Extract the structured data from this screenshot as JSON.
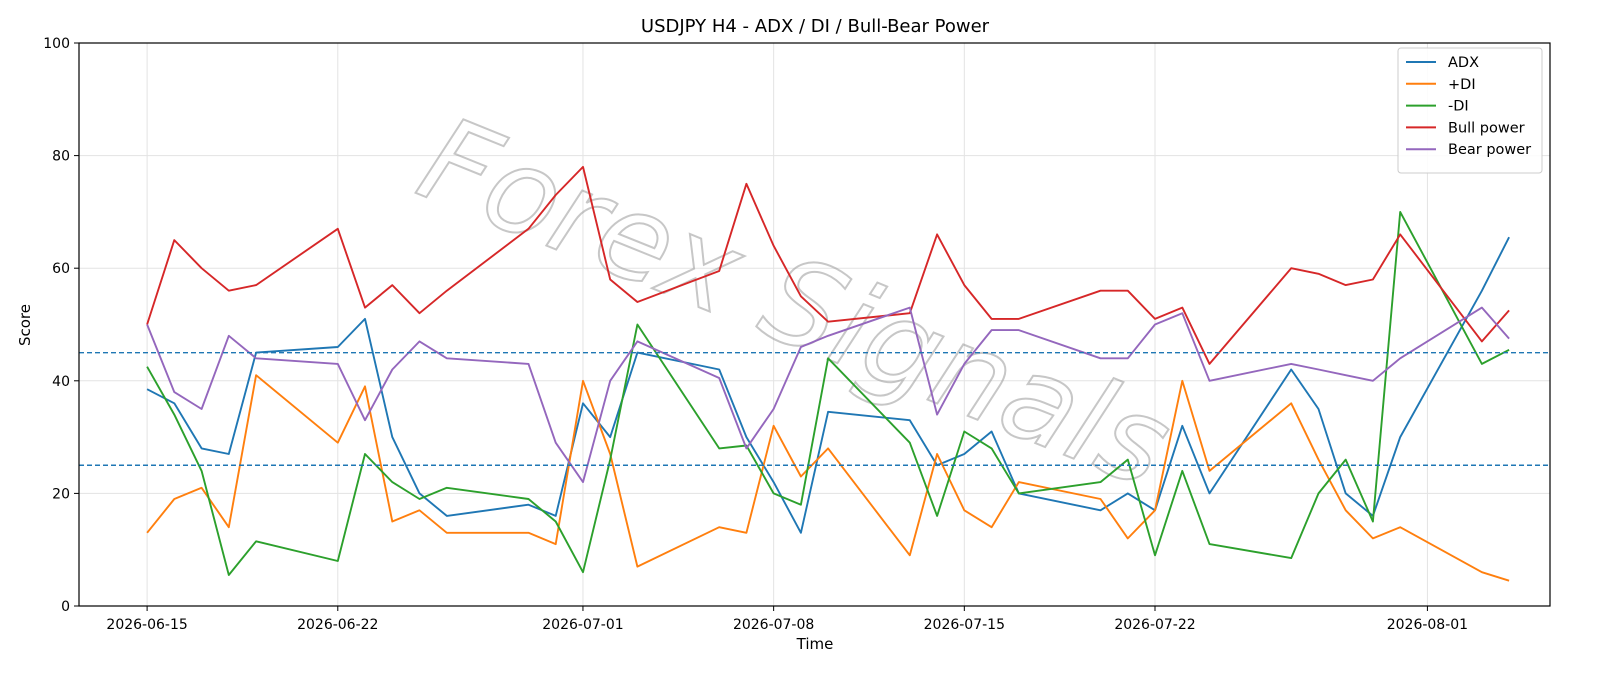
{
  "chart_data": {
    "type": "line",
    "title": "USDJPY H4 - ADX / DI / Bull-Bear Power",
    "xlabel": "Time",
    "ylabel": "Score",
    "ylim": [
      0,
      100
    ],
    "xlim": [
      "2026-06-12T12:00",
      "2026-08-05T12:00"
    ],
    "x_ticks": [
      "2026-06-15",
      "2026-06-22",
      "2026-07-01",
      "2026-07-08",
      "2026-07-15",
      "2026-07-22",
      "2026-08-01"
    ],
    "y_ticks": [
      0,
      20,
      40,
      60,
      80,
      100
    ],
    "grid": true,
    "legend": "upper right",
    "hlines": [
      {
        "y": 45,
        "style": "dashed",
        "color": "#1f77b4"
      },
      {
        "y": 25,
        "style": "dashed",
        "color": "#1f77b4"
      }
    ],
    "watermark": "Forex Signals",
    "x": [
      "2026-06-15",
      "2026-06-16",
      "2026-06-17",
      "2026-06-18",
      "2026-06-19",
      "2026-06-22",
      "2026-06-23",
      "2026-06-24",
      "2026-06-25",
      "2026-06-26",
      "2026-06-29",
      "2026-06-30",
      "2026-07-01",
      "2026-07-02",
      "2026-07-03",
      "2026-07-06",
      "2026-07-07",
      "2026-07-08",
      "2026-07-09",
      "2026-07-10",
      "2026-07-13",
      "2026-07-14",
      "2026-07-15",
      "2026-07-16",
      "2026-07-17",
      "2026-07-20",
      "2026-07-21",
      "2026-07-22",
      "2026-07-23",
      "2026-07-24",
      "2026-07-27",
      "2026-07-28",
      "2026-07-29",
      "2026-07-30",
      "2026-07-31",
      "2026-08-03",
      "2026-08-04"
    ],
    "series": [
      {
        "name": "ADX",
        "color": "#1f77b4",
        "values": [
          38.5,
          36,
          28,
          27,
          45,
          46,
          51,
          30,
          20,
          16,
          18,
          16,
          36,
          30,
          45,
          42,
          30,
          22,
          13,
          34.5,
          33,
          25,
          27,
          31,
          20,
          17,
          20,
          17,
          32,
          20,
          42,
          35,
          20,
          16,
          30,
          56,
          65.5
        ]
      },
      {
        "name": "+DI",
        "color": "#ff7f0e",
        "values": [
          13,
          19,
          21,
          14,
          41,
          29,
          39,
          15,
          17,
          13,
          13,
          11,
          40,
          27,
          7,
          14,
          13,
          32,
          23,
          28,
          9,
          27,
          17,
          14,
          22,
          19,
          12,
          17,
          40,
          24,
          36,
          26,
          17,
          12,
          14,
          6,
          4.5
        ]
      },
      {
        "name": "-DI",
        "color": "#2ca02c",
        "values": [
          42.5,
          34,
          24,
          5.5,
          11.5,
          8,
          27,
          22,
          19,
          21,
          19,
          15,
          6,
          26,
          50,
          28,
          28.5,
          20,
          18,
          44,
          29,
          16,
          31,
          28,
          20,
          22,
          26,
          9,
          24,
          11,
          8.5,
          20,
          26,
          15,
          70,
          43,
          45.5
        ]
      },
      {
        "name": "Bull power",
        "color": "#d62728",
        "values": [
          50,
          65,
          60,
          56,
          57,
          67,
          53,
          57,
          52,
          56,
          67,
          73,
          78,
          58,
          54,
          59.5,
          75,
          64,
          55,
          50.5,
          52,
          66,
          57,
          51,
          51,
          56,
          56,
          51,
          53,
          43,
          60,
          59,
          57,
          58,
          66,
          47,
          52.5
        ]
      },
      {
        "name": "Bear power",
        "color": "#9467bd",
        "values": [
          50,
          38,
          35,
          48,
          44,
          43,
          33,
          42,
          47,
          44,
          43,
          29,
          22,
          40,
          47,
          40.5,
          28,
          35,
          46,
          48,
          53,
          34,
          43,
          49,
          49,
          44,
          44,
          50,
          52,
          40,
          43,
          42,
          41,
          40,
          44,
          53,
          47.5
        ]
      }
    ]
  }
}
